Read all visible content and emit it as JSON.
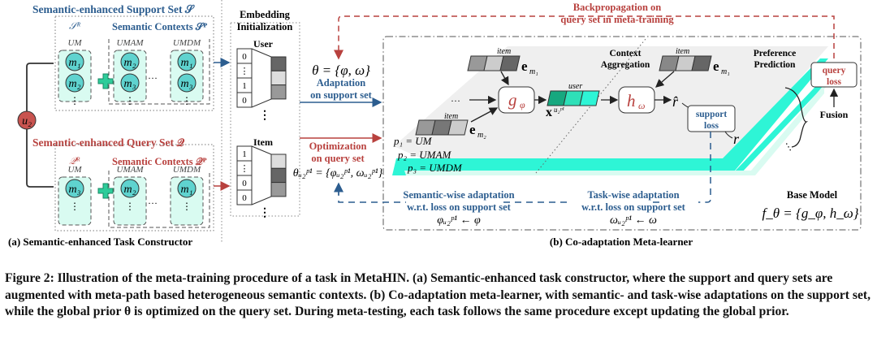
{
  "support": {
    "title": "Semantic-enhanced Support Set 𝒮",
    "sub": "u₂",
    "r_label": "𝒮ᴿ",
    "ctx": "Semantic Contexts 𝒮ᴾ",
    "cols": [
      "UM",
      "UMAM",
      "UMDM"
    ],
    "items": [
      [
        "m₁",
        "m₂"
      ],
      [
        "m₂",
        "m₃"
      ],
      [
        "m₁",
        "m₃"
      ]
    ]
  },
  "query": {
    "title": "Semantic-enhanced Query Set 𝒬",
    "sub": "u₂",
    "r_label": "𝒬ᴿ",
    "ctx": "Semantic Contexts 𝒬ᴾ",
    "cols": [
      "UM",
      "UMAM",
      "UMDM"
    ],
    "items": [
      [
        "m₃"
      ],
      [
        "m₂"
      ],
      [
        "m₁"
      ]
    ]
  },
  "user_node": "u₂",
  "section_a": "(a) Semantic-enhanced Task Constructor",
  "section_b": "(b) Co-adaptation Meta-learner",
  "embedding": {
    "title1": "Embedding",
    "title2": "Initialization",
    "user": "User",
    "item": "Item",
    "user_vec": [
      "0",
      "⋮",
      "1",
      "0"
    ],
    "item_vec": [
      "1",
      "⋮",
      "0",
      "0"
    ]
  },
  "theta": "θ = {φ, ω}",
  "adaptation": [
    "Adaptation",
    "on support set"
  ],
  "optimization": [
    "Optimization",
    "on query set"
  ],
  "theta_u": "θᵤ₂ᵖ¹ = {φᵤ₂ᵖ¹, ωᵤ₂ᵖ¹}",
  "backprop": [
    "Backpropagation on",
    "query set in meta-training"
  ],
  "meta": {
    "item": "item",
    "user": "user",
    "em1": "e",
    "em1s": "m₁",
    "em2": "e",
    "em2s": "m₂",
    "g": "g",
    "gs": "φ",
    "h": "h",
    "hs": "ω",
    "x": "x",
    "xs": "u₂ᵖ¹",
    "rhat": "r̂",
    "r": "r",
    "ctx_agg": [
      "Context",
      "Aggregation"
    ],
    "pref": [
      "Preference",
      "Prediction"
    ],
    "support_loss": [
      "support",
      "loss"
    ],
    "query_loss": [
      "query",
      "loss"
    ],
    "fusion": "Fusion",
    "p1": "p₁ = UM",
    "p2": "p₂ = UMAM",
    "p3": "p₃ = UMDM",
    "dots": "···",
    "base_model": "Base Model",
    "f": "f_θ = {g_φ, h_ω}",
    "sem_adapt": [
      "Semantic-wise adaptation",
      "w.r.t. loss on support set",
      "φᵤ₂ᵖ¹ ← φ"
    ],
    "task_adapt": [
      "Task-wise adaptation",
      "w.r.t. loss on support set",
      "ωᵤ₂ᵖ¹ ← ω"
    ]
  },
  "caption": "Figure 2: Illustration of the meta-training procedure of a task in MetaHIN. (a) Semantic-enhanced task constructor, where the support and query sets are augmented with meta-path based heterogeneous semantic contexts. (b) Co-adaptation meta-learner, with semantic- and task-wise adaptations on the support set, while the global prior θ is optimized on the query set. During meta-testing, each task follows the same procedure except updating the global prior.",
  "colors": {
    "blue": "#2c5d8f",
    "red": "#b8413e",
    "cyan": "#2ef5d6",
    "lightcyan": "#d9fbf1",
    "teal": "#5fd3cf"
  }
}
